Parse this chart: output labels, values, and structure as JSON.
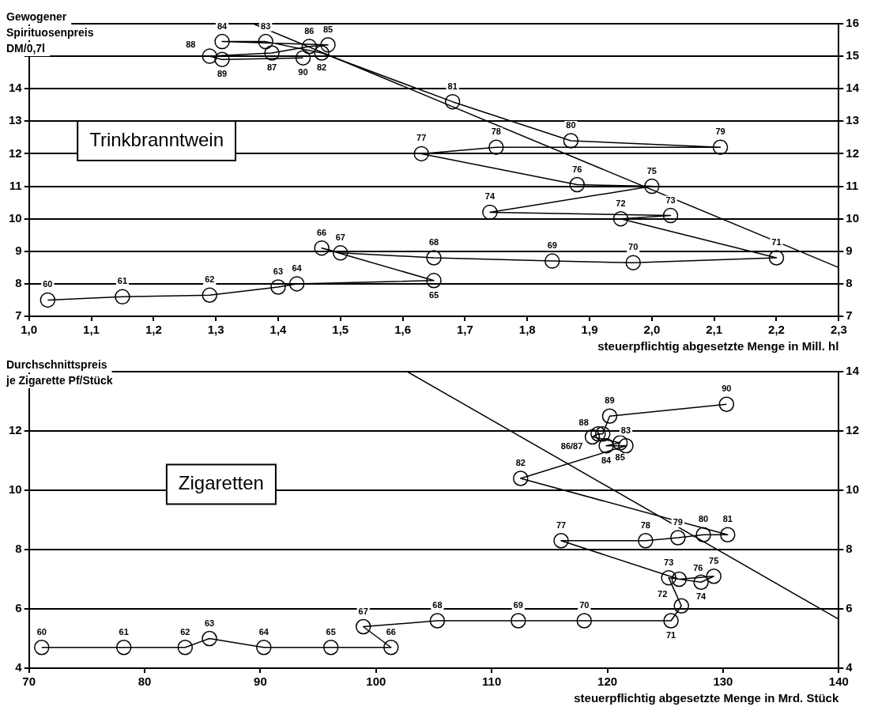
{
  "chart_data": [
    {
      "type": "line",
      "ylabel": "Gewogener\nSpirituosenpreis\nDM/0,7l",
      "xlabel": "steuerpflichtig abgesetzte Menge in Mill. hl",
      "annotations": [
        "Trinkbranntwein",
        {
          "text": "60",
          "x": 1.03,
          "y": 7.5
        },
        {
          "text": "61",
          "x": 1.15,
          "y": 7.6
        },
        {
          "text": "62",
          "x": 1.29,
          "y": 7.65
        },
        {
          "text": "63",
          "x": 1.4,
          "y": 7.9
        },
        {
          "text": "64",
          "x": 1.43,
          "y": 8.0
        },
        {
          "text": "65",
          "x": 1.65,
          "y": 8.1
        },
        {
          "text": "66",
          "x": 1.47,
          "y": 9.1
        },
        {
          "text": "67",
          "x": 1.5,
          "y": 8.95
        },
        {
          "text": "68",
          "x": 1.65,
          "y": 8.8
        },
        {
          "text": "69",
          "x": 1.84,
          "y": 8.7
        },
        {
          "text": "70",
          "x": 1.97,
          "y": 8.65
        },
        {
          "text": "71",
          "x": 2.2,
          "y": 8.8
        },
        {
          "text": "72",
          "x": 1.95,
          "y": 10.0
        },
        {
          "text": "73",
          "x": 2.03,
          "y": 10.1
        },
        {
          "text": "74",
          "x": 1.74,
          "y": 10.2
        },
        {
          "text": "75",
          "x": 2.0,
          "y": 11.0
        },
        {
          "text": "76",
          "x": 1.88,
          "y": 11.05
        },
        {
          "text": "77",
          "x": 1.63,
          "y": 12.0
        },
        {
          "text": "78",
          "x": 1.75,
          "y": 12.2
        },
        {
          "text": "79",
          "x": 2.11,
          "y": 12.2
        },
        {
          "text": "80",
          "x": 1.87,
          "y": 12.4
        },
        {
          "text": "81",
          "x": 1.68,
          "y": 13.6
        },
        {
          "text": "82",
          "x": 1.47,
          "y": 15.1
        },
        {
          "text": "83",
          "x": 1.38,
          "y": 15.45
        },
        {
          "text": "84",
          "x": 1.31,
          "y": 15.45
        },
        {
          "text": "85",
          "x": 1.48,
          "y": 15.35
        },
        {
          "text": "86",
          "x": 1.45,
          "y": 15.3
        },
        {
          "text": "87",
          "x": 1.39,
          "y": 15.1
        },
        {
          "text": "88",
          "x": 1.29,
          "y": 15.0
        },
        {
          "text": "89",
          "x": 1.31,
          "y": 14.9
        },
        {
          "text": "90",
          "x": 1.44,
          "y": 14.95
        }
      ],
      "xlim": [
        1.0,
        2.3
      ],
      "xticks": [
        {
          "value": 1.0,
          "label": "1,0"
        },
        {
          "value": 1.1,
          "label": "1,1"
        },
        {
          "value": 1.2,
          "label": "1,2"
        },
        {
          "value": 1.3,
          "label": "1,3"
        },
        {
          "value": 1.4,
          "label": "1,4"
        },
        {
          "value": 1.5,
          "label": "1,5"
        },
        {
          "value": 1.6,
          "label": "1,6"
        },
        {
          "value": 1.7,
          "label": "1,7"
        },
        {
          "value": 1.8,
          "label": "1,8"
        },
        {
          "value": 1.9,
          "label": "1,9"
        },
        {
          "value": 2.0,
          "label": "2,0"
        },
        {
          "value": 2.1,
          "label": "2,1"
        },
        {
          "value": 2.2,
          "label": "2,2"
        },
        {
          "value": 2.3,
          "label": "2,3"
        }
      ],
      "ylim": [
        7,
        16
      ],
      "yticks": [
        7,
        8,
        9,
        10,
        11,
        12,
        13,
        14,
        {
          "value": 15,
          "label": null
        },
        {
          "value": 16,
          "label": null
        }
      ],
      "y2lim": [
        7,
        16
      ],
      "y2ticks": [
        7,
        8,
        9,
        10,
        11,
        12,
        13,
        14,
        15,
        16
      ],
      "grid": "y",
      "legend": false,
      "series": [
        {
          "color": "#000000",
          "marker": "circle",
          "x": [
            1.03,
            1.15,
            1.29,
            1.4,
            1.43,
            1.65,
            1.47,
            1.5,
            1.65,
            1.84,
            1.97,
            2.2,
            1.95,
            2.03,
            1.74,
            2.0,
            1.88,
            1.63,
            1.75,
            2.11,
            1.87,
            1.68,
            1.47,
            1.38,
            1.31,
            1.48,
            1.45,
            1.39,
            1.29,
            1.31,
            1.44
          ],
          "values": [
            7.5,
            7.6,
            7.65,
            7.9,
            8.0,
            8.1,
            9.1,
            8.95,
            8.8,
            8.7,
            8.65,
            8.8,
            10.0,
            10.1,
            10.2,
            11.0,
            11.05,
            12.0,
            12.2,
            12.2,
            12.4,
            13.6,
            15.1,
            15.45,
            15.45,
            15.35,
            15.3,
            15.1,
            15.0,
            14.9,
            14.95
          ]
        },
        {
          "type": "line",
          "color": "#000000",
          "marker": "none",
          "x": [
            1.36,
            2.3
          ],
          "values": [
            16,
            8.5
          ]
        }
      ]
    },
    {
      "type": "line",
      "ylabel": "Durchschnittspreis\nje Zigarette Pf/Stück",
      "xlabel": "steuerpflichtig abgesetzte Menge in Mrd. Stück",
      "annotations": [
        "Zigaretten",
        {
          "text": "60",
          "x": 71.1,
          "y": 4.7
        },
        {
          "text": "61",
          "x": 78.2,
          "y": 4.7
        },
        {
          "text": "62",
          "x": 83.5,
          "y": 4.7
        },
        {
          "text": "63",
          "x": 85.6,
          "y": 5.0
        },
        {
          "text": "64",
          "x": 90.3,
          "y": 4.7
        },
        {
          "text": "65",
          "x": 96.1,
          "y": 4.7
        },
        {
          "text": "66",
          "x": 101.3,
          "y": 4.7
        },
        {
          "text": "67",
          "x": 98.9,
          "y": 5.4
        },
        {
          "text": "68",
          "x": 105.3,
          "y": 5.6
        },
        {
          "text": "69",
          "x": 112.3,
          "y": 5.6
        },
        {
          "text": "70",
          "x": 118.0,
          "y": 5.6
        },
        {
          "text": "71",
          "x": 125.5,
          "y": 5.6
        },
        {
          "text": "72",
          "x": 126.4,
          "y": 6.1
        },
        {
          "text": "73",
          "x": 125.3,
          "y": 7.05
        },
        {
          "text": "74",
          "x": 128.1,
          "y": 6.9
        },
        {
          "text": "75",
          "x": 129.2,
          "y": 7.1
        },
        {
          "text": "76",
          "x": 126.2,
          "y": 7.0
        },
        {
          "text": "77",
          "x": 116.0,
          "y": 8.3
        },
        {
          "text": "78",
          "x": 123.3,
          "y": 8.3
        },
        {
          "text": "79",
          "x": 126.1,
          "y": 8.4
        },
        {
          "text": "80",
          "x": 128.3,
          "y": 8.5
        },
        {
          "text": "81",
          "x": 130.4,
          "y": 8.5
        },
        {
          "text": "82",
          "x": 112.5,
          "y": 10.4
        },
        {
          "text": "83",
          "x": 121.6,
          "y": 11.5
        },
        {
          "text": "84",
          "x": 119.9,
          "y": 11.5
        },
        {
          "text": "85",
          "x": 121.1,
          "y": 11.6
        },
        {
          "text": "86/87",
          "x": 118.7,
          "y": 11.8
        },
        {
          "text": "88",
          "x": 119.6,
          "y": 11.9
        },
        {
          "text": "89",
          "x": 120.2,
          "y": 12.5
        },
        {
          "text": "90",
          "x": 130.3,
          "y": 12.9
        }
      ],
      "xlim": [
        70,
        140
      ],
      "xticks": [
        70,
        80,
        90,
        100,
        110,
        120,
        130,
        140
      ],
      "ylim": [
        4,
        14
      ],
      "yticks": [
        4,
        6,
        8,
        10,
        12,
        {
          "value": 14,
          "label": null
        }
      ],
      "y2lim": [
        4,
        14
      ],
      "y2ticks": [
        4,
        6,
        8,
        10,
        12,
        14
      ],
      "grid": "y",
      "legend": false,
      "series": [
        {
          "color": "#000000",
          "marker": "circle",
          "x": [
            71.1,
            78.2,
            83.5,
            85.6,
            90.3,
            96.1,
            101.3,
            98.9,
            105.3,
            112.3,
            118.0,
            125.5,
            126.4,
            125.3,
            128.1,
            129.2,
            126.2,
            116.0,
            123.3,
            126.1,
            128.3,
            130.4,
            112.5,
            121.6,
            119.9,
            121.1,
            118.7,
            119.2,
            119.6,
            120.2,
            130.3
          ],
          "values": [
            4.7,
            4.7,
            4.7,
            5.0,
            4.7,
            4.7,
            4.7,
            5.4,
            5.6,
            5.6,
            5.6,
            5.6,
            6.1,
            7.05,
            6.9,
            7.1,
            7.0,
            8.3,
            8.3,
            8.4,
            8.5,
            8.5,
            10.4,
            11.5,
            11.5,
            11.6,
            11.8,
            11.9,
            11.9,
            12.5,
            12.9
          ]
        },
        {
          "type": "line",
          "color": "#000000",
          "marker": "none",
          "x": [
            102.7,
            140
          ],
          "values": [
            14,
            5.65
          ]
        }
      ]
    }
  ]
}
